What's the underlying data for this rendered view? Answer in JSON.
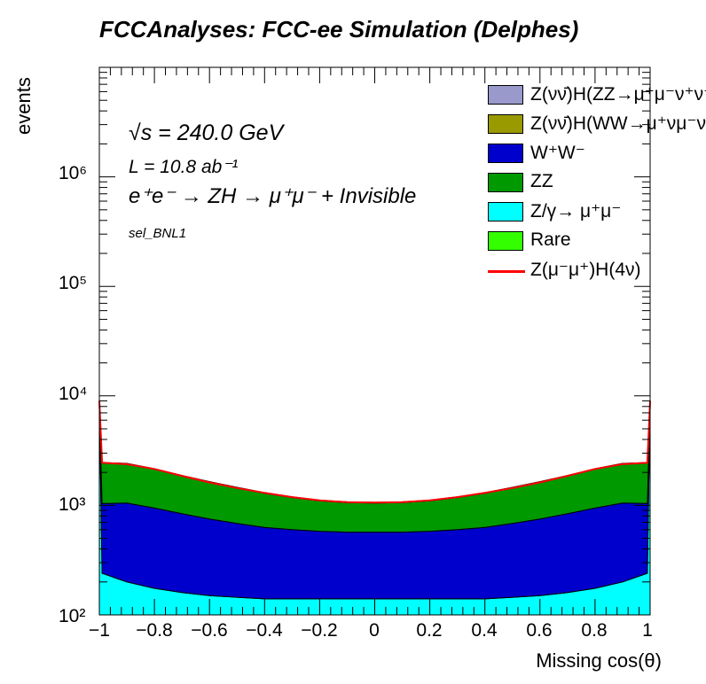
{
  "header": {
    "title": "FCCAnalyses: FCC-ee Simulation (Delphes)"
  },
  "annotations": {
    "energy": "√s = 240.0 GeV",
    "lumi": "L = 10.8 ab⁻¹",
    "process": "e⁺e⁻ → ZH → μ⁺μ⁻ + Invisible",
    "selection": "sel_BNL1"
  },
  "legend": [
    {
      "label": "Z(νν̄)H(ZZ→μ⁺μ⁻ν⁺ν⁻)",
      "color": "#9999cc",
      "kind": "fill"
    },
    {
      "label": "Z(νν̄)H(WW→μ⁺νμ⁻ν)",
      "color": "#999900",
      "kind": "fill"
    },
    {
      "label": "W⁺W⁻",
      "color": "#0000cc",
      "kind": "fill"
    },
    {
      "label": "ZZ",
      "color": "#009900",
      "kind": "fill"
    },
    {
      "label": "Z/γ→ μ⁺μ⁻",
      "color": "#00ffff",
      "kind": "fill"
    },
    {
      "label": "Rare",
      "color": "#33ff00",
      "kind": "fill"
    },
    {
      "label": "Z(μ⁻μ⁺)H(4ν)",
      "color": "#ff0000",
      "kind": "line"
    }
  ],
  "chart_data": {
    "type": "area",
    "stacked": true,
    "title": "FCCAnalyses: FCC-ee Simulation (Delphes)",
    "xlabel": "Missing cos(θ)",
    "ylabel": "events",
    "ylog": true,
    "xlim": [
      -1,
      1
    ],
    "ylim": [
      100,
      10000000
    ],
    "xticks": [
      "−1",
      "−0.8",
      "−0.6",
      "−0.4",
      "−0.2",
      "0",
      "0.2",
      "0.4",
      "0.6",
      "0.8",
      "1"
    ],
    "yticks": [
      "10²",
      "10³",
      "10⁴",
      "10⁵",
      "10⁶"
    ],
    "x": [
      -1.0,
      -0.99,
      -0.9,
      -0.8,
      -0.7,
      -0.6,
      -0.5,
      -0.4,
      -0.3,
      -0.2,
      -0.1,
      0.0,
      0.1,
      0.2,
      0.3,
      0.4,
      0.5,
      0.6,
      0.7,
      0.8,
      0.9,
      0.99,
      1.0
    ],
    "series": [
      {
        "name": "Z/γ→ μ⁺μ⁻",
        "color": "#00ffff",
        "values": [
          9000,
          240,
          200,
          175,
          160,
          150,
          145,
          140,
          140,
          140,
          140,
          140,
          140,
          140,
          140,
          140,
          145,
          150,
          160,
          175,
          200,
          240,
          9000
        ]
      },
      {
        "name": "W⁺W⁻",
        "color": "#0000cc",
        "values": [
          0,
          800,
          850,
          770,
          680,
          600,
          540,
          490,
          460,
          440,
          430,
          430,
          430,
          440,
          460,
          490,
          540,
          600,
          680,
          770,
          850,
          800,
          0
        ]
      },
      {
        "name": "ZZ",
        "color": "#009900",
        "values": [
          0,
          1400,
          1350,
          1200,
          1020,
          880,
          760,
          660,
          580,
          520,
          490,
          480,
          490,
          520,
          580,
          660,
          760,
          880,
          1020,
          1200,
          1350,
          1400,
          0
        ]
      },
      {
        "name": "Rare",
        "color": "#33ff00",
        "values": [
          0,
          10,
          10,
          10,
          10,
          10,
          10,
          10,
          10,
          10,
          10,
          10,
          10,
          10,
          10,
          10,
          10,
          10,
          10,
          10,
          10,
          10,
          0
        ]
      },
      {
        "name": "Z(νν̄)H(WW→μ⁺νμ⁻ν)",
        "color": "#999900",
        "values": [
          0,
          5,
          5,
          5,
          5,
          5,
          5,
          5,
          5,
          5,
          5,
          5,
          5,
          5,
          5,
          5,
          5,
          5,
          5,
          5,
          5,
          5,
          0
        ]
      },
      {
        "name": "Z(νν̄)H(ZZ→μ⁺μ⁻ν⁺ν⁻)",
        "color": "#9999cc",
        "values": [
          0,
          2,
          2,
          2,
          2,
          2,
          2,
          2,
          2,
          2,
          2,
          2,
          2,
          2,
          2,
          2,
          2,
          2,
          2,
          2,
          2,
          2,
          0
        ]
      }
    ],
    "signal": {
      "name": "Z(μ⁻μ⁺)H(4ν)",
      "color": "#ff0000",
      "values": [
        9000,
        2450,
        2380,
        2150,
        1860,
        1620,
        1440,
        1300,
        1190,
        1110,
        1070,
        1060,
        1070,
        1110,
        1190,
        1300,
        1440,
        1620,
        1860,
        2150,
        2380,
        2450,
        9000
      ]
    }
  }
}
